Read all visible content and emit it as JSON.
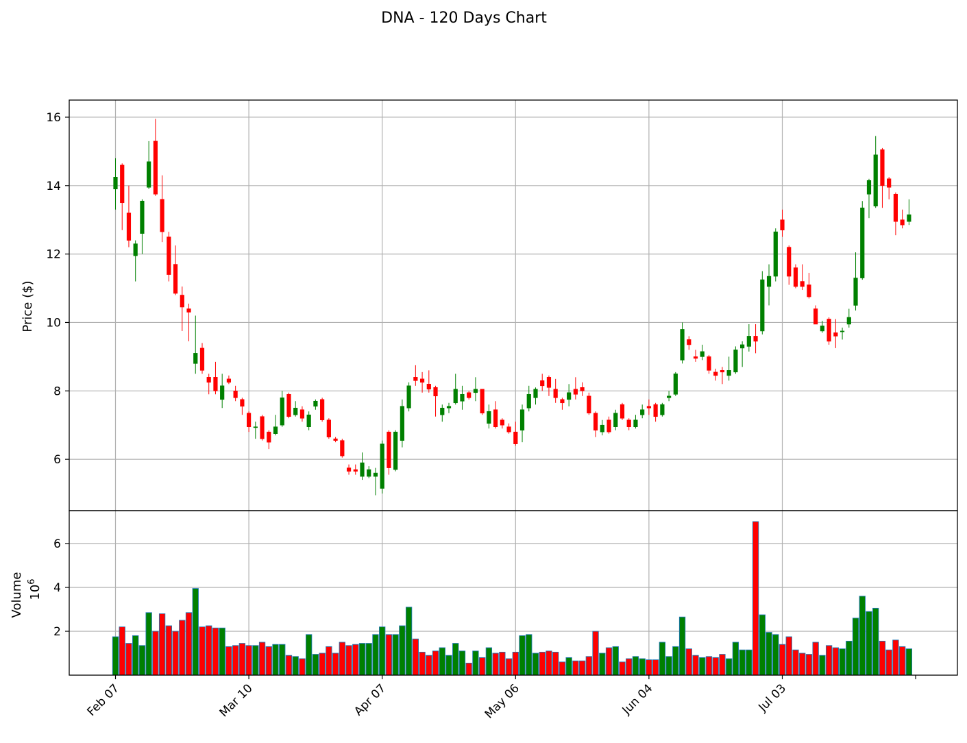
{
  "chart_data": {
    "type": "candlestick",
    "title": "DNA - 120 Days Chart",
    "price_panel": {
      "ylabel": "Price ($)",
      "ylim": [
        4.5,
        16.5
      ],
      "yticks": [
        6,
        8,
        10,
        12,
        14,
        16
      ]
    },
    "volume_panel": {
      "ylabel": "Volume",
      "scale_label": "10",
      "scale_exp": "6",
      "ylim": [
        0,
        7.5
      ],
      "yticks": [
        2,
        4,
        6
      ]
    },
    "xtick_labels": [
      {
        "label": "Feb 07",
        "index": 0
      },
      {
        "label": "Mar 10",
        "index": 20
      },
      {
        "label": "Apr 07",
        "index": 40
      },
      {
        "label": "May 06",
        "index": 60
      },
      {
        "label": "Jun 04",
        "index": 80
      },
      {
        "label": "Jul 03",
        "index": 100
      }
    ],
    "grid": true,
    "colors": {
      "up": "#008000",
      "down": "#ff0000",
      "volume_edge": "#1f77b4",
      "grid": "#b0b0b0"
    },
    "candles": [
      [
        13.9,
        14.25,
        14.8,
        13.3,
        1.75
      ],
      [
        14.6,
        13.5,
        14.65,
        12.7,
        2.2
      ],
      [
        13.2,
        12.4,
        14.0,
        12.2,
        1.45
      ],
      [
        11.95,
        12.3,
        12.4,
        11.2,
        1.8
      ],
      [
        12.6,
        13.55,
        13.6,
        12.0,
        1.35
      ],
      [
        13.95,
        14.7,
        15.3,
        13.9,
        2.85
      ],
      [
        15.3,
        13.75,
        15.95,
        13.7,
        2.0
      ],
      [
        13.6,
        12.65,
        14.3,
        12.35,
        2.8
      ],
      [
        12.5,
        11.4,
        12.65,
        11.2,
        2.25
      ],
      [
        11.7,
        10.85,
        12.25,
        10.8,
        2.0
      ],
      [
        10.8,
        10.45,
        11.05,
        9.75,
        2.5
      ],
      [
        10.4,
        10.3,
        10.55,
        9.45,
        2.85
      ],
      [
        8.8,
        9.1,
        10.2,
        8.5,
        3.95
      ],
      [
        9.25,
        8.6,
        9.4,
        8.5,
        2.2
      ],
      [
        8.4,
        8.25,
        8.5,
        7.9,
        2.25
      ],
      [
        8.4,
        8.0,
        8.85,
        7.9,
        2.15
      ],
      [
        7.75,
        8.15,
        8.5,
        7.5,
        2.15
      ],
      [
        8.35,
        8.25,
        8.45,
        8.2,
        1.3
      ],
      [
        8.0,
        7.8,
        8.15,
        7.7,
        1.35
      ],
      [
        7.75,
        7.55,
        7.8,
        7.3,
        1.45
      ],
      [
        7.35,
        6.95,
        7.4,
        6.8,
        1.35
      ],
      [
        6.95,
        6.95,
        7.1,
        6.6,
        1.35
      ],
      [
        7.25,
        6.6,
        7.3,
        6.55,
        1.5
      ],
      [
        6.8,
        6.5,
        6.85,
        6.3,
        1.3
      ],
      [
        6.75,
        6.95,
        7.3,
        6.7,
        1.4
      ],
      [
        7.0,
        7.8,
        8.0,
        6.95,
        1.4
      ],
      [
        7.9,
        7.25,
        7.95,
        7.2,
        0.9
      ],
      [
        7.3,
        7.5,
        7.7,
        7.25,
        0.85
      ],
      [
        7.45,
        7.2,
        7.55,
        7.1,
        0.75
      ],
      [
        6.95,
        7.3,
        7.4,
        6.85,
        1.85
      ],
      [
        7.55,
        7.7,
        7.75,
        7.45,
        0.95
      ],
      [
        7.75,
        7.15,
        7.8,
        7.1,
        1.0
      ],
      [
        7.15,
        6.65,
        7.2,
        6.6,
        1.3
      ],
      [
        6.6,
        6.55,
        6.65,
        6.5,
        1.0
      ],
      [
        6.55,
        6.1,
        6.6,
        6.05,
        1.5
      ],
      [
        5.75,
        5.65,
        5.85,
        5.55,
        1.35
      ],
      [
        5.7,
        5.65,
        5.85,
        5.55,
        1.4
      ],
      [
        5.5,
        5.9,
        6.2,
        5.4,
        1.45
      ],
      [
        5.5,
        5.7,
        5.8,
        5.45,
        1.45
      ],
      [
        5.5,
        5.6,
        5.75,
        4.95,
        1.85
      ],
      [
        5.15,
        6.45,
        6.55,
        5.0,
        2.2
      ],
      [
        6.8,
        5.75,
        6.85,
        5.55,
        1.85
      ],
      [
        5.7,
        6.8,
        6.85,
        5.65,
        1.85
      ],
      [
        6.55,
        7.55,
        7.75,
        6.35,
        2.25
      ],
      [
        7.5,
        8.15,
        8.25,
        7.4,
        3.1
      ],
      [
        8.4,
        8.3,
        8.75,
        8.15,
        1.65
      ],
      [
        8.35,
        8.25,
        8.55,
        7.95,
        1.05
      ],
      [
        8.2,
        8.05,
        8.6,
        7.95,
        0.9
      ],
      [
        8.1,
        7.85,
        8.15,
        7.25,
        1.1
      ],
      [
        7.3,
        7.5,
        7.6,
        7.1,
        1.25
      ],
      [
        7.5,
        7.55,
        7.65,
        7.35,
        0.9
      ],
      [
        7.65,
        8.05,
        8.5,
        7.6,
        1.45
      ],
      [
        7.7,
        7.9,
        8.15,
        7.45,
        1.1
      ],
      [
        7.95,
        7.8,
        8.0,
        7.75,
        0.55
      ],
      [
        7.95,
        8.05,
        8.4,
        7.7,
        1.1
      ],
      [
        8.05,
        7.35,
        8.05,
        7.3,
        0.8
      ],
      [
        7.05,
        7.4,
        7.6,
        6.9,
        1.25
      ],
      [
        7.45,
        6.95,
        7.7,
        6.9,
        1.0
      ],
      [
        7.15,
        7.0,
        7.2,
        6.9,
        1.05
      ],
      [
        6.95,
        6.8,
        7.05,
        6.75,
        0.75
      ],
      [
        6.8,
        6.45,
        7.1,
        6.4,
        1.05
      ],
      [
        6.85,
        7.45,
        7.6,
        6.5,
        1.8
      ],
      [
        7.5,
        7.9,
        8.15,
        7.4,
        1.85
      ],
      [
        7.8,
        8.05,
        8.1,
        7.6,
        1.0
      ],
      [
        8.3,
        8.15,
        8.5,
        8.0,
        1.05
      ],
      [
        8.4,
        8.1,
        8.45,
        7.85,
        1.1
      ],
      [
        8.05,
        7.8,
        8.35,
        7.65,
        1.05
      ],
      [
        7.75,
        7.65,
        7.8,
        7.45,
        0.6
      ],
      [
        7.75,
        7.95,
        8.2,
        7.55,
        0.8
      ],
      [
        8.05,
        7.9,
        8.4,
        7.75,
        0.65
      ],
      [
        8.1,
        8.0,
        8.25,
        7.85,
        0.65
      ],
      [
        7.85,
        7.35,
        7.95,
        7.3,
        0.85
      ],
      [
        7.35,
        6.85,
        7.4,
        6.65,
        2.0
      ],
      [
        6.8,
        7.0,
        7.15,
        6.7,
        1.0
      ],
      [
        7.15,
        6.8,
        7.25,
        6.75,
        1.25
      ],
      [
        6.95,
        7.35,
        7.45,
        6.85,
        1.3
      ],
      [
        7.6,
        7.2,
        7.65,
        7.15,
        0.6
      ],
      [
        7.15,
        6.95,
        7.2,
        6.85,
        0.75
      ],
      [
        6.95,
        7.15,
        7.3,
        6.9,
        0.85
      ],
      [
        7.3,
        7.45,
        7.6,
        7.2,
        0.75
      ],
      [
        7.55,
        7.5,
        7.75,
        7.3,
        0.7
      ],
      [
        7.6,
        7.25,
        7.65,
        7.1,
        0.7
      ],
      [
        7.3,
        7.6,
        7.65,
        7.25,
        1.5
      ],
      [
        7.8,
        7.85,
        8.0,
        7.7,
        0.85
      ],
      [
        7.9,
        8.5,
        8.55,
        7.85,
        1.3
      ],
      [
        8.9,
        9.8,
        10.0,
        8.8,
        2.65
      ],
      [
        9.5,
        9.35,
        9.6,
        9.2,
        1.2
      ],
      [
        9.0,
        8.95,
        9.2,
        8.85,
        0.9
      ],
      [
        9.0,
        9.15,
        9.35,
        8.9,
        0.8
      ],
      [
        9.0,
        8.6,
        9.05,
        8.5,
        0.85
      ],
      [
        8.55,
        8.45,
        8.65,
        8.3,
        0.8
      ],
      [
        8.6,
        8.55,
        8.7,
        8.2,
        0.95
      ],
      [
        8.45,
        8.6,
        9.0,
        8.3,
        0.75
      ],
      [
        8.55,
        9.2,
        9.3,
        8.5,
        1.5
      ],
      [
        9.25,
        9.35,
        9.45,
        8.7,
        1.15
      ],
      [
        9.3,
        9.6,
        9.95,
        9.15,
        1.15
      ],
      [
        9.6,
        9.45,
        9.95,
        9.1,
        7.0
      ],
      [
        9.75,
        11.25,
        11.5,
        9.65,
        2.75
      ],
      [
        11.05,
        11.35,
        11.7,
        10.5,
        1.95
      ],
      [
        11.35,
        12.65,
        12.75,
        11.2,
        1.85
      ],
      [
        13.0,
        12.7,
        13.3,
        12.5,
        1.4
      ],
      [
        12.2,
        11.35,
        12.25,
        11.1,
        1.75
      ],
      [
        11.6,
        11.05,
        11.7,
        11.0,
        1.15
      ],
      [
        11.2,
        11.05,
        11.7,
        10.95,
        1.0
      ],
      [
        11.1,
        10.75,
        11.45,
        10.7,
        0.95
      ],
      [
        10.4,
        9.95,
        10.5,
        9.95,
        1.5
      ],
      [
        9.75,
        9.9,
        10.05,
        9.7,
        0.9
      ],
      [
        10.1,
        9.45,
        10.15,
        9.35,
        1.35
      ],
      [
        9.7,
        9.6,
        10.1,
        9.25,
        1.25
      ],
      [
        9.75,
        9.75,
        9.85,
        9.5,
        1.2
      ],
      [
        9.95,
        10.15,
        10.4,
        9.85,
        1.55
      ],
      [
        10.5,
        11.3,
        12.05,
        10.35,
        2.6
      ],
      [
        11.3,
        13.35,
        13.55,
        11.25,
        3.6
      ],
      [
        13.75,
        14.15,
        14.2,
        13.05,
        2.9
      ],
      [
        13.4,
        14.9,
        15.45,
        13.35,
        3.05
      ],
      [
        15.05,
        14.0,
        15.1,
        13.35,
        1.55
      ],
      [
        14.2,
        13.95,
        14.25,
        13.6,
        1.15
      ],
      [
        13.75,
        12.95,
        13.8,
        12.55,
        1.6
      ],
      [
        13.0,
        12.85,
        13.3,
        12.75,
        1.3
      ],
      [
        12.95,
        13.15,
        13.6,
        12.85,
        1.2
      ]
    ]
  }
}
